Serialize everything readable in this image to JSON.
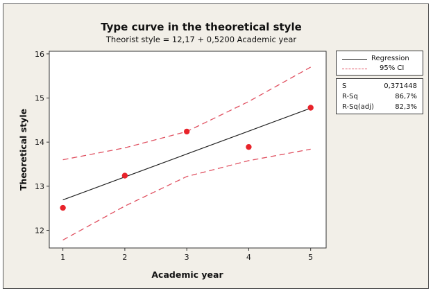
{
  "chart_data": {
    "type": "line",
    "title": "Type curve in the theoretical style",
    "subtitle": "Theorist style =  12,17 + 0,5200 Academic year",
    "xlabel": "Academic year",
    "ylabel": "Theoretical style",
    "xlim": [
      0.78,
      5.25
    ],
    "ylim": [
      11.6,
      16.06
    ],
    "xticks": [
      1,
      2,
      3,
      4,
      5
    ],
    "yticks": [
      12,
      13,
      14,
      15,
      16
    ],
    "grid": false,
    "legend_position": "right",
    "regression": {
      "intercept": 12.17,
      "slope": 0.52
    },
    "series": [
      {
        "name": "Regression",
        "kind": "line",
        "color": "#222222",
        "x": [
          1,
          2,
          3,
          4,
          5
        ],
        "y": [
          12.69,
          13.21,
          13.73,
          14.25,
          14.77
        ]
      },
      {
        "name": "95% CI",
        "kind": "dashed",
        "color": "#e05060",
        "x": [
          1,
          2,
          3,
          4,
          5
        ],
        "y_upper": [
          13.6,
          13.87,
          14.24,
          14.92,
          15.7
        ],
        "y_lower": [
          11.78,
          12.55,
          13.22,
          13.58,
          13.84
        ]
      },
      {
        "kind": "scatter",
        "color": "#e8232a",
        "x": [
          1,
          2,
          3,
          4,
          5
        ],
        "y": [
          12.51,
          13.24,
          14.24,
          13.89,
          14.78
        ]
      }
    ],
    "stats": [
      {
        "label": "S",
        "value": "0,371448"
      },
      {
        "label": "R-Sq",
        "value": "86,7%"
      },
      {
        "label": "R-Sq(adj)",
        "value": "82,3%"
      }
    ]
  }
}
